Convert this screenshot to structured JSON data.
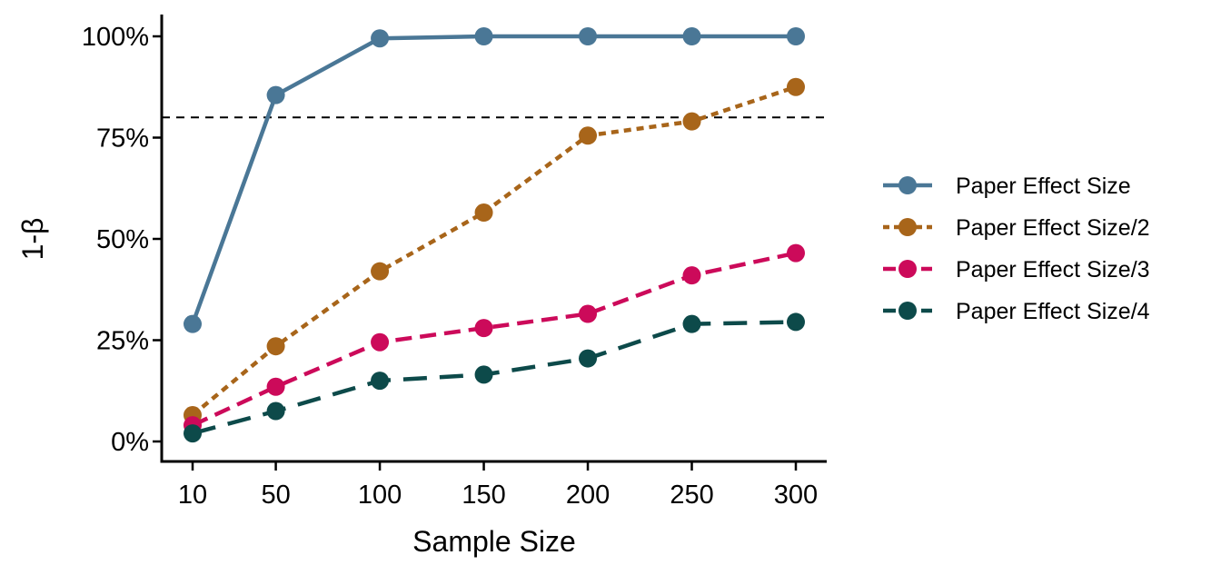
{
  "chart_data": {
    "type": "line",
    "xlabel": "Sample Size",
    "ylabel": "1-β",
    "x": [
      10,
      50,
      100,
      150,
      200,
      250,
      300
    ],
    "x_tick_labels": [
      "10",
      "50",
      "100",
      "150",
      "200",
      "250",
      "300"
    ],
    "ylim": [
      0,
      100
    ],
    "y_ticks": [
      0,
      25,
      50,
      75,
      100
    ],
    "y_tick_labels": [
      "0%",
      "25%",
      "50%",
      "75%",
      "100%"
    ],
    "reference_line": {
      "y": 80,
      "style": "dashed",
      "color": "#000000"
    },
    "grid": false,
    "legend_position": "right",
    "series": [
      {
        "name": "Paper Effect Size",
        "color": "#4a7796",
        "dash": "solid",
        "values": [
          29,
          85.5,
          99.5,
          100,
          100,
          100,
          100
        ]
      },
      {
        "name": "Paper Effect Size/2",
        "color": "#a8651a",
        "dash": "dotted",
        "values": [
          6.5,
          23.5,
          42,
          56.5,
          75.5,
          79,
          87.5
        ]
      },
      {
        "name": "Paper Effect Size/3",
        "color": "#cc0a5a",
        "dash": "dashed",
        "values": [
          4,
          13.5,
          24.5,
          28,
          31.5,
          41,
          46.5
        ]
      },
      {
        "name": "Paper Effect Size/4",
        "color": "#0d4a4a",
        "dash": "longdashed",
        "values": [
          2,
          7.5,
          15,
          16.5,
          20.5,
          29,
          29.5
        ]
      }
    ]
  }
}
